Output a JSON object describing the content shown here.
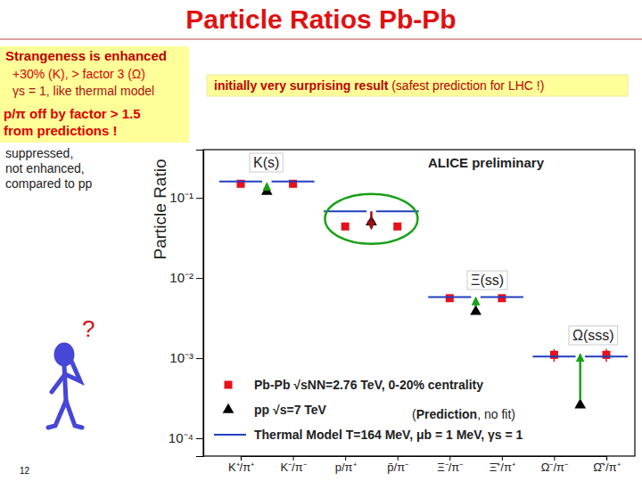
{
  "slide": {
    "title": "Particle Ratios Pb-Pb",
    "left_box": [
      "Strangeness is enhanced",
      "+30% (K), > factor 3 (Ω)",
      "γs = 1, like thermal model",
      "p/π off by factor > 1.5",
      "from predictions !"
    ],
    "lower_box": [
      "suppressed,",
      "not enhanced,",
      "compared to pp"
    ],
    "top_box": [
      "initially very surprising result",
      " (safest prediction for LHC !)"
    ],
    "question": "?",
    "page_number": "12"
  },
  "chart_data": {
    "type": "scatter",
    "y_label": "Particle Ratio",
    "categories": [
      "K⁺/π⁺",
      "K⁻/π⁻",
      "p/π⁺",
      "p̄/π⁻",
      "Ξ⁻/π⁻",
      "Ξ̄⁺/π⁺",
      "Ω⁻/π⁻",
      "Ω̄⁺/π⁺"
    ],
    "log": "y",
    "grid": false,
    "ylim": [
      6e-05,
      0.4
    ],
    "yticks": [
      {
        "value": 0.1,
        "label": "10⁻¹"
      },
      {
        "value": 0.01,
        "label": "10⁻²"
      },
      {
        "value": 0.001,
        "label": "10⁻³"
      },
      {
        "value": 0.0001,
        "label": "10⁻⁴"
      }
    ],
    "series": [
      {
        "name": "Pb-Pb √sNN=2.76 TeV, 0-20% centrality",
        "color": "#e8101a",
        "marker": "square",
        "values": [
          0.15,
          0.15,
          0.044,
          0.044,
          0.0056,
          0.0056,
          0.0011,
          0.0011
        ],
        "errors": [
          0.01,
          0.01,
          0.004,
          0.004,
          0.0005,
          0.0005,
          0.0002,
          0.0002
        ]
      },
      {
        "name": "pp √s=7 TeV",
        "color": "#000000",
        "marker": "triangle",
        "values": [
          0.12,
          null,
          0.05,
          null,
          0.0038,
          null,
          0.00026,
          null
        ]
      },
      {
        "name": "Thermal Model T=164 MeV, μb = 1 MeV, γs = 1",
        "color": "#1f3fbf",
        "type": "line",
        "line_style": "solid",
        "values": [
          0.16,
          0.16,
          0.068,
          0.068,
          0.0058,
          0.0058,
          0.00105,
          0.00105
        ]
      }
    ],
    "annotations": [
      "ALICE preliminary",
      "K(s)",
      "Ξ(ss)",
      "Ω(sss)"
    ],
    "note": [
      "(",
      "Prediction",
      ", no fit)"
    ]
  }
}
